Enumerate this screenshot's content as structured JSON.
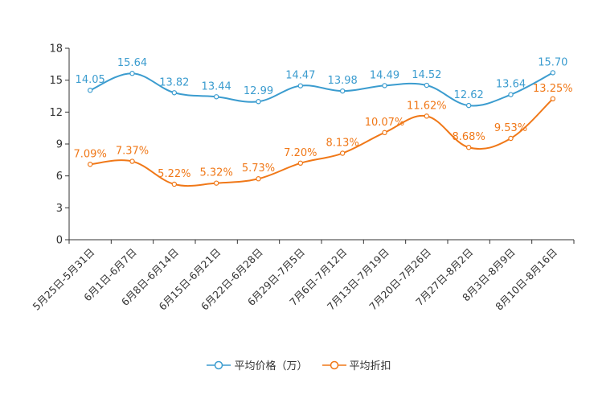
{
  "chart_data": {
    "type": "line",
    "title": "",
    "xlabel": "",
    "ylabel": "",
    "ylim": [
      0,
      18
    ],
    "yticks": [
      0,
      3,
      6,
      9,
      12,
      15,
      18
    ],
    "categories": [
      "5月25日-5月31日",
      "6月1日-6月7日",
      "6月8日-6月14日",
      "6月15日-6月21日",
      "6月22日-6月28日",
      "6月29日-7月5日",
      "7月6日-7月12日",
      "7月13日-7月19日",
      "7月20日-7月26日",
      "7月27日-8月2日",
      "8月3日-8月9日",
      "8月10日-8月16日"
    ],
    "series": [
      {
        "name": "平均价格（万）",
        "color": "#3b9ccf",
        "values": [
          14.05,
          15.64,
          13.82,
          13.44,
          12.99,
          14.47,
          13.98,
          14.49,
          14.52,
          12.62,
          13.64,
          15.7
        ],
        "labels": [
          "14.05",
          "15.64",
          "13.82",
          "13.44",
          "12.99",
          "14.47",
          "13.98",
          "14.49",
          "14.52",
          "12.62",
          "13.64",
          "15.70"
        ]
      },
      {
        "name": "平均折扣",
        "color": "#f07818",
        "values": [
          7.09,
          7.37,
          5.22,
          5.32,
          5.73,
          7.2,
          8.13,
          10.07,
          11.62,
          8.68,
          9.53,
          13.25
        ],
        "labels": [
          "7.09%",
          "7.37%",
          "5.22%",
          "5.32%",
          "5.73%",
          "7.20%",
          "8.13%",
          "10.07%",
          "11.62%",
          "8.68%",
          "9.53%",
          "13.25%"
        ]
      }
    ],
    "legend_position": "bottom-center"
  }
}
